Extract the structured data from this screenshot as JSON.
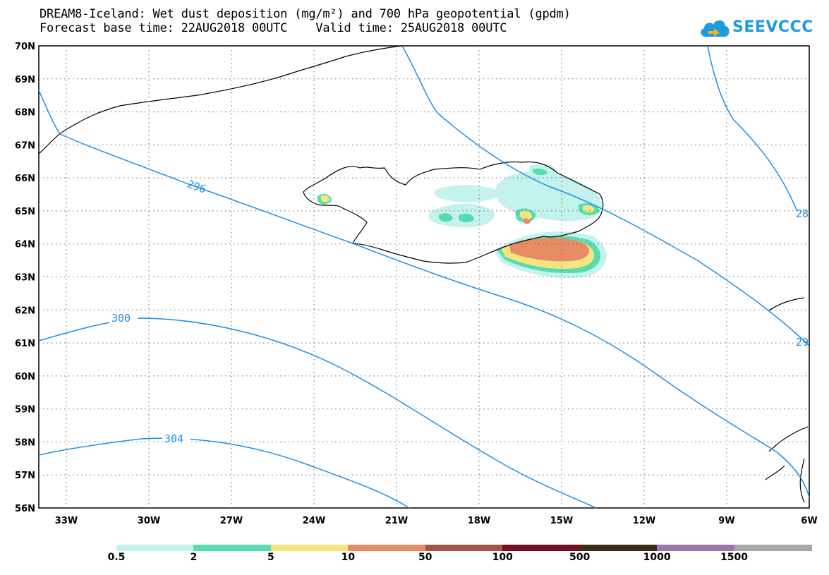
{
  "title": {
    "line1": "DREAM8-Iceland: Wet dust deposition (mg/m²) and 700 hPa geopotential (gpdm)",
    "line2": "Forecast base time: 22AUG2018 00UTC    Valid time: 25AUG2018 00UTC"
  },
  "logo": {
    "text": "SEEVCCC",
    "icon": "cloud-icon"
  },
  "map": {
    "lat_labels": [
      "70N",
      "69N",
      "68N",
      "67N",
      "66N",
      "65N",
      "64N",
      "63N",
      "62N",
      "61N",
      "60N",
      "59N",
      "58N",
      "57N",
      "56N"
    ],
    "lon_labels": [
      "33W",
      "30W",
      "27W",
      "24W",
      "21W",
      "18W",
      "15W",
      "12W",
      "9W",
      "6W"
    ],
    "lon_range": [
      -34,
      -6
    ],
    "lat_range": [
      56,
      70
    ],
    "grid": "dotted",
    "contour_labels": [
      "296",
      "300",
      "304",
      "28",
      "29"
    ],
    "contour_color": "#1e90e6"
  },
  "legend": {
    "labels": [
      "0.5",
      "2",
      "5",
      "10",
      "50",
      "100",
      "500",
      "1000",
      "1500"
    ],
    "colors": [
      "#c4f2ec",
      "#58dbb0",
      "#f6e47e",
      "#e88c66",
      "#a0544a",
      "#760e22",
      "#3c2a1a",
      "#9a78ae",
      "#a8a8a8"
    ]
  }
}
